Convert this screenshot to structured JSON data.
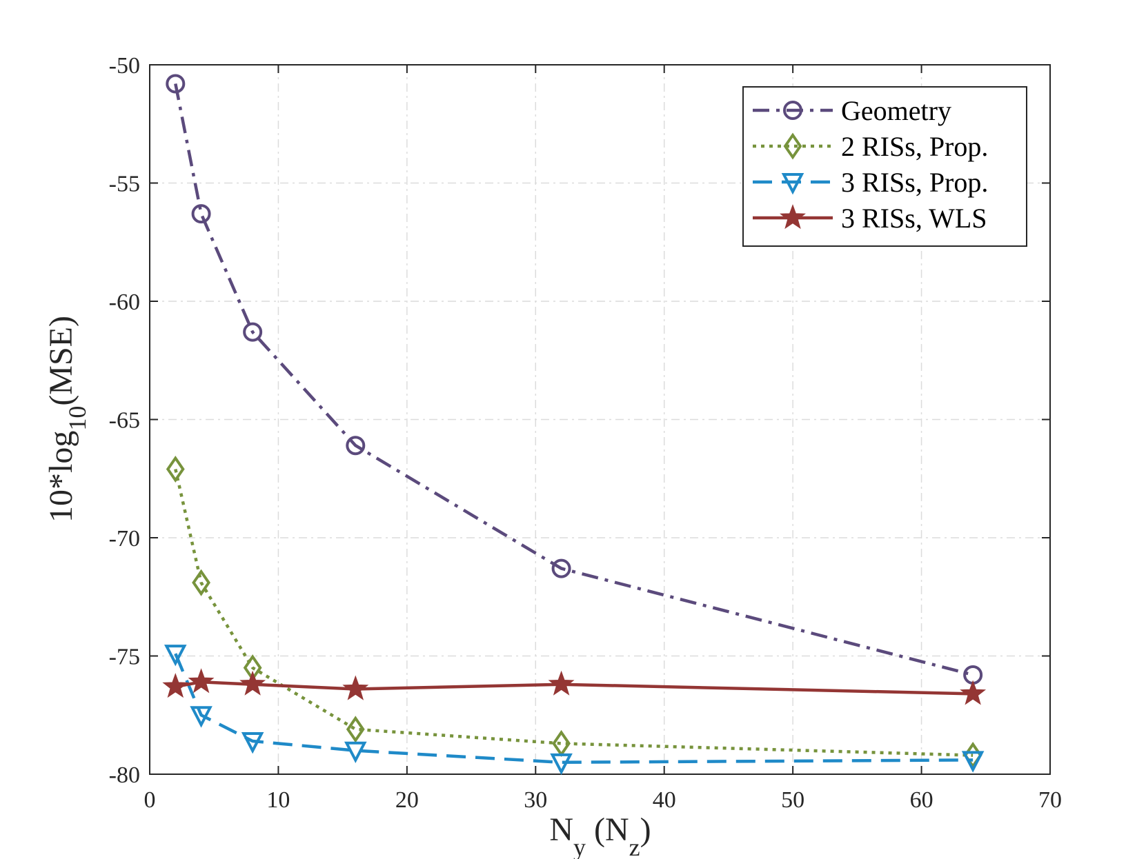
{
  "chart_data": {
    "type": "line",
    "title": "",
    "xlabel": {
      "main": "N",
      "sub": "y",
      "mid": " (N",
      "sub2": "z",
      "end": ")"
    },
    "ylabel": {
      "main": "10*log",
      "sub": "10",
      "end": "(MSE)"
    },
    "xlim": [
      0,
      70
    ],
    "ylim": [
      -80,
      -50
    ],
    "xticks": [
      0,
      10,
      20,
      30,
      40,
      50,
      60,
      70
    ],
    "yticks": [
      -80,
      -75,
      -70,
      -65,
      -60,
      -55,
      -50
    ],
    "xtick_labels": [
      "0",
      "10",
      "20",
      "30",
      "40",
      "50",
      "60",
      "70"
    ],
    "ytick_labels": [
      "-80",
      "-75",
      "-70",
      "-65",
      "-60",
      "-55",
      "-50"
    ],
    "grid": true,
    "legend_position": "top-right",
    "x": [
      2,
      4,
      8,
      16,
      32,
      64
    ],
    "series": [
      {
        "name": "Geometry",
        "color": "#5b4a7c",
        "dash": "dashdot",
        "marker": "circle",
        "values": [
          -50.8,
          -56.3,
          -61.3,
          -66.1,
          -71.3,
          -75.8
        ]
      },
      {
        "name": "2 RISs, Prop.",
        "color": "#77933c",
        "dash": "dotted",
        "marker": "diamond",
        "values": [
          -67.1,
          -71.9,
          -75.5,
          -78.1,
          -78.7,
          -79.2
        ]
      },
      {
        "name": "3 RISs, Prop.",
        "color": "#1f8ac8",
        "dash": "dashed",
        "marker": "triangle-down",
        "values": [
          -74.9,
          -77.5,
          -78.6,
          -79.0,
          -79.5,
          -79.4
        ]
      },
      {
        "name": "3 RISs, WLS",
        "color": "#943634",
        "dash": "solid",
        "marker": "star",
        "values": [
          -76.3,
          -76.1,
          -76.2,
          -76.4,
          -76.2,
          -76.6
        ]
      }
    ]
  }
}
